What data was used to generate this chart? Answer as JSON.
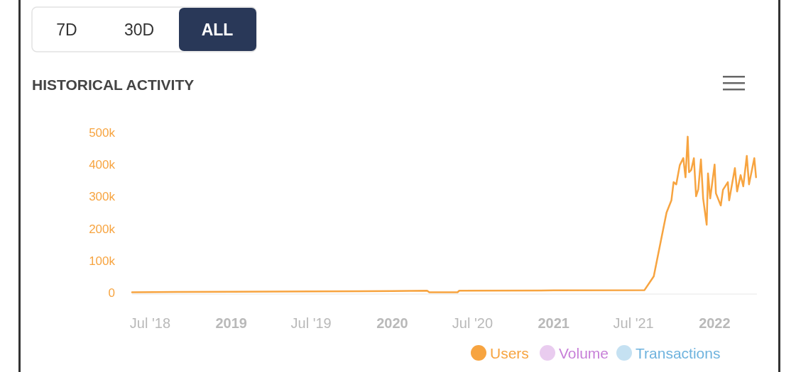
{
  "chart_data": {
    "type": "line",
    "title": "HISTORICAL ACTIVITY",
    "annotations": [
      "7D",
      "30D",
      "ALL"
    ],
    "x": [
      "2018-05-21",
      "2018-09-01",
      "2019-01-01",
      "2019-07-01",
      "2020-01-01",
      "2020-03-20",
      "2020-03-25",
      "2020-05-28",
      "2020-06-01",
      "2021-01-01",
      "2021-07-26",
      "2021-08-16",
      "2021-09-01",
      "2021-09-14",
      "2021-09-25",
      "2021-09-30",
      "2021-10-06",
      "2021-10-14",
      "2021-10-22",
      "2021-10-27",
      "2021-11-01",
      "2021-11-04",
      "2021-11-09",
      "2021-11-15",
      "2021-11-20",
      "2021-11-25",
      "2021-12-01",
      "2021-12-06",
      "2021-12-14",
      "2021-12-17",
      "2021-12-22",
      "2022-01-01",
      "2022-01-04",
      "2022-01-15",
      "2022-01-20",
      "2022-01-31",
      "2022-02-03",
      "2022-02-16",
      "2022-02-21",
      "2022-03-01",
      "2022-03-07",
      "2022-03-15",
      "2022-03-20",
      "2022-04-01",
      "2022-04-05"
    ],
    "series": [
      {
        "name": "Users",
        "color": "#f7a440",
        "values": [
          1000,
          2000,
          3000,
          4000,
          5000,
          6000,
          1000,
          1000,
          6000,
          7000,
          8000,
          51000,
          161000,
          250000,
          288000,
          345000,
          338000,
          398000,
          420000,
          360000,
          487000,
          376000,
          383000,
          420000,
          301000,
          323000,
          416000,
          294000,
          212000,
          372000,
          294000,
          400000,
          310000,
          272000,
          321000,
          345000,
          288000,
          389000,
          316000,
          367000,
          332000,
          427000,
          338000,
          420000,
          360000
        ]
      },
      {
        "name": "Volume",
        "color": "#c77fd8",
        "values": [
          null,
          null,
          null,
          null,
          null,
          null,
          null,
          null,
          null,
          null,
          null,
          null,
          null,
          null,
          null,
          null,
          null,
          null,
          null,
          null,
          null,
          null,
          null,
          null,
          null,
          null,
          null,
          null,
          null,
          null,
          null,
          null,
          null,
          null,
          null,
          null,
          null,
          null,
          null,
          null,
          null,
          null,
          null,
          null,
          null
        ]
      },
      {
        "name": "Transactions",
        "color": "#6fb3de",
        "values": [
          null,
          null,
          null,
          null,
          null,
          null,
          null,
          null,
          null,
          null,
          null,
          null,
          null,
          null,
          null,
          null,
          null,
          null,
          null,
          null,
          null,
          null,
          null,
          null,
          null,
          null,
          null,
          null,
          null,
          null,
          null,
          null,
          null,
          null,
          null,
          null,
          null,
          null,
          null,
          null,
          null,
          null,
          null,
          null,
          null
        ]
      }
    ],
    "xlim": [
      "2018-05-21",
      "2022-04-07"
    ],
    "xticks": [
      {
        "value": "2018-07-01",
        "label": "Jul '18"
      },
      {
        "value": "2019-01-01",
        "label": "2019"
      },
      {
        "value": "2019-07-01",
        "label": "Jul '19"
      },
      {
        "value": "2020-01-01",
        "label": "2020"
      },
      {
        "value": "2020-07-01",
        "label": "Jul '20"
      },
      {
        "value": "2021-01-01",
        "label": "2021"
      },
      {
        "value": "2021-07-01",
        "label": "Jul '21"
      },
      {
        "value": "2022-01-01",
        "label": "2022"
      }
    ],
    "ylim": [
      0,
      500000
    ],
    "yticks": [
      {
        "value": 0,
        "label": "0"
      },
      {
        "value": 100000,
        "label": "100k"
      },
      {
        "value": 200000,
        "label": "200k"
      },
      {
        "value": 300000,
        "label": "300k"
      },
      {
        "value": 400000,
        "label": "400k"
      },
      {
        "value": 500000,
        "label": "500k"
      }
    ],
    "legend": "bottom right",
    "marker": "none",
    "line_style": "solid"
  }
}
